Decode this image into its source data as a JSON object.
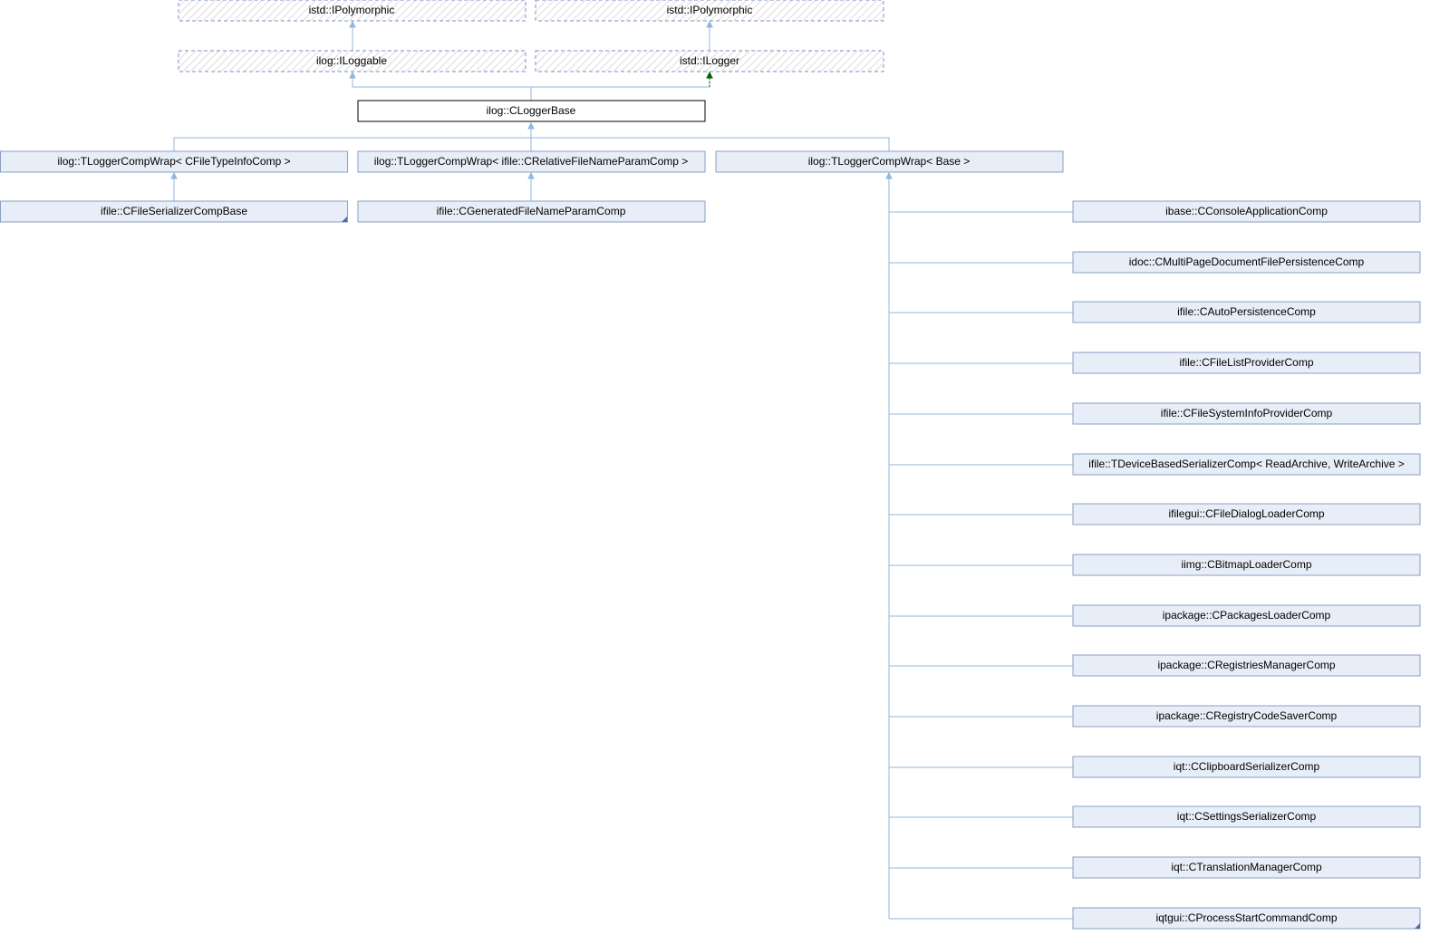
{
  "colors": {
    "edge": "#8fb7e0",
    "edge_dark": "#006400",
    "node_fill": "#e8eef7",
    "node_border": "#8a9fc7",
    "ghost_border": "#7b8fc4",
    "ghost_hatch": "#d9d9d9",
    "focus_border": "#000000",
    "focus_fill": "#ffffff"
  },
  "nodes": {
    "istd_ipolymorphic_a": "istd::IPolymorphic",
    "istd_ipolymorphic_b": "istd::IPolymorphic",
    "ilog_iloggable": "ilog::ILoggable",
    "istd_ilogger": "istd::ILogger",
    "ilog_cloggerbase": "ilog::CLoggerBase",
    "wrap_filetypeinfo": "ilog::TLoggerCompWrap< CFileTypeInfoComp >",
    "wrap_relativefilename": "ilog::TLoggerCompWrap< ifile::CRelativeFileNameParamComp >",
    "wrap_base": "ilog::TLoggerCompWrap< Base >",
    "ifile_cfileserializercompbase": "ifile::CFileSerializerCompBase",
    "ifile_cgeneratedfilenameparamcomp": "ifile::CGeneratedFileNameParamComp"
  },
  "derived_list": [
    "ibase::CConsoleApplicationComp",
    "idoc::CMultiPageDocumentFilePersistenceComp",
    "ifile::CAutoPersistenceComp",
    "ifile::CFileListProviderComp",
    "ifile::CFileSystemInfoProviderComp",
    "ifile::TDeviceBasedSerializerComp< ReadArchive, WriteArchive >",
    "ifilegui::CFileDialogLoaderComp",
    "iimg::CBitmapLoaderComp",
    "ipackage::CPackagesLoaderComp",
    "ipackage::CRegistriesManagerComp",
    "ipackage::CRegistryCodeSaverComp",
    "iqt::CClipboardSerializerComp",
    "iqt::CSettingsSerializerComp",
    "iqt::CTranslationManagerComp",
    "iqtgui::CProcessStartCommandComp"
  ]
}
